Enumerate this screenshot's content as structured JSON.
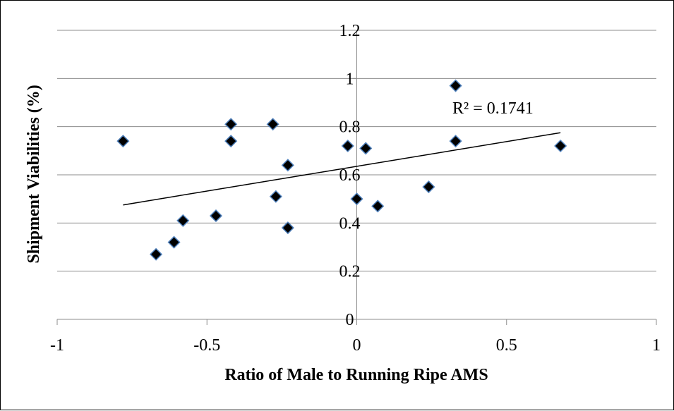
{
  "chart_data": {
    "type": "scatter",
    "title": "",
    "xlabel": "Ratio of Male to Running Ripe AMS",
    "ylabel": "Shipment Viabilities (%)",
    "xlim": [
      -1,
      1
    ],
    "ylim": [
      0,
      1.2
    ],
    "x_ticks": [
      -1,
      -0.5,
      0,
      0.5,
      1
    ],
    "x_tick_labels": [
      "-1",
      "-0.5",
      "0",
      "0.5",
      "1"
    ],
    "y_ticks": [
      0,
      0.2,
      0.4,
      0.6,
      0.8,
      1,
      1.2
    ],
    "y_tick_labels": [
      "0",
      "0.2",
      "0.4",
      "0.6",
      "0.8",
      "1",
      "1.2"
    ],
    "grid": "horizontal",
    "legend": "none",
    "marker": "diamond",
    "marker_color": "#000000",
    "marker_edge_color": "#4f81bd",
    "points": [
      {
        "x": -0.78,
        "y": 0.74
      },
      {
        "x": -0.67,
        "y": 0.27
      },
      {
        "x": -0.61,
        "y": 0.32
      },
      {
        "x": -0.58,
        "y": 0.41
      },
      {
        "x": -0.47,
        "y": 0.43
      },
      {
        "x": -0.42,
        "y": 0.81
      },
      {
        "x": -0.42,
        "y": 0.74
      },
      {
        "x": -0.28,
        "y": 0.81
      },
      {
        "x": -0.27,
        "y": 0.51
      },
      {
        "x": -0.23,
        "y": 0.64
      },
      {
        "x": -0.23,
        "y": 0.38
      },
      {
        "x": -0.03,
        "y": 0.72
      },
      {
        "x": 0.0,
        "y": 0.5
      },
      {
        "x": 0.03,
        "y": 0.71
      },
      {
        "x": 0.07,
        "y": 0.47
      },
      {
        "x": 0.24,
        "y": 0.55
      },
      {
        "x": 0.33,
        "y": 0.74
      },
      {
        "x": 0.33,
        "y": 0.97
      },
      {
        "x": 0.68,
        "y": 0.72
      }
    ],
    "trendline": {
      "type": "linear",
      "start": {
        "x": -0.78,
        "y": 0.475
      },
      "end": {
        "x": 0.68,
        "y": 0.775
      },
      "color": "#000000"
    },
    "annotation": "R² = 0.1741"
  }
}
